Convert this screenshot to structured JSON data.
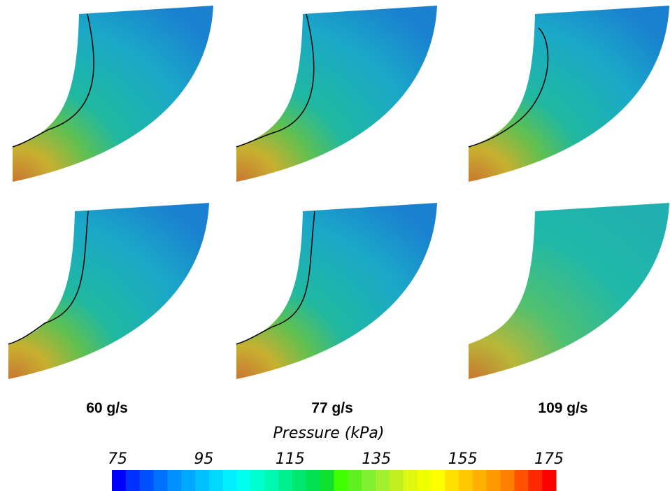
{
  "panel_labels": [
    "60 g/s",
    "77 g/s",
    "109 g/s"
  ],
  "colorbar": {
    "title": "Pressure (kPa)",
    "range": [
      75,
      175
    ],
    "ticks": [
      75,
      95,
      115,
      135,
      155,
      175
    ],
    "colors": [
      "#0000ff",
      "#0030ff",
      "#0050ff",
      "#0070ff",
      "#0090ff",
      "#00a8ff",
      "#00c0ff",
      "#00d8ff",
      "#00f0ff",
      "#00ffee",
      "#00ffd0",
      "#00f8b0",
      "#00f090",
      "#00e870",
      "#00e050",
      "#10e030",
      "#40ff00",
      "#60f020",
      "#80f030",
      "#a0f030",
      "#c0f020",
      "#e0f810",
      "#f0ff00",
      "#ffff00",
      "#ffe000",
      "#ffc800",
      "#ffb000",
      "#ff9800",
      "#ff8000",
      "#ff5000",
      "#ff2800",
      "#ff0000"
    ]
  }
}
